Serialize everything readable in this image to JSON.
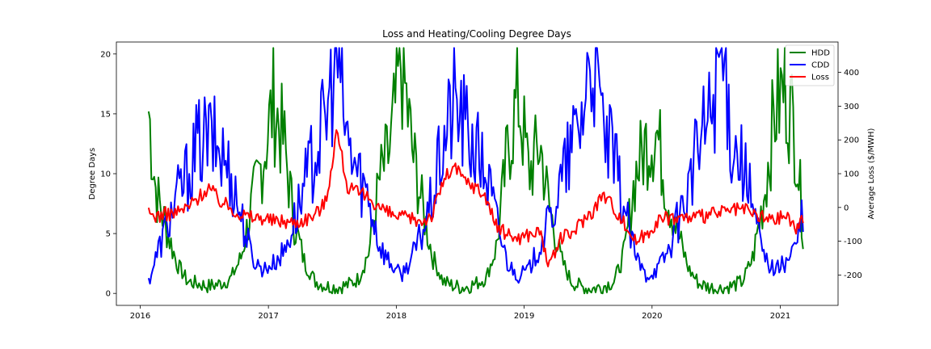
{
  "chart_data": {
    "type": "line",
    "title": "Loss and Heating/Cooling Degree Days",
    "xlabel": "",
    "ylabel": "Degree Days",
    "ylabel_right": "Average Loss ($/MWH)",
    "x_ticks": [
      "2016",
      "2017",
      "2018",
      "2019",
      "2020",
      "2021"
    ],
    "xlim": [
      "2015-10-25",
      "2021-06-15"
    ],
    "ylim": [
      -1,
      21
    ],
    "y_ticks": [
      0,
      5,
      10,
      15,
      20
    ],
    "ylim_right": [
      -290,
      490
    ],
    "y_ticks_right": [
      -200,
      -100,
      0,
      100,
      200,
      300,
      400
    ],
    "legend_position": "top-right",
    "grid": false,
    "series": [
      {
        "name": "HDD",
        "axis": "left",
        "color": "#008000",
        "x": [
          "2016-01-25",
          "2016-02-15",
          "2016-03-15",
          "2016-04-15",
          "2016-05-15",
          "2016-06-15",
          "2016-07-15",
          "2016-08-15",
          "2016-09-15",
          "2016-10-15",
          "2016-11-15",
          "2016-12-15",
          "2017-01-15",
          "2017-02-15",
          "2017-03-15",
          "2017-04-15",
          "2017-05-15",
          "2017-06-15",
          "2017-07-15",
          "2017-08-15",
          "2017-09-15",
          "2017-10-15",
          "2017-11-15",
          "2017-12-15",
          "2018-01-15",
          "2018-02-15",
          "2018-03-15",
          "2018-04-15",
          "2018-05-15",
          "2018-06-15",
          "2018-07-15",
          "2018-08-15",
          "2018-09-15",
          "2018-10-15",
          "2018-11-15",
          "2018-12-15",
          "2019-01-15",
          "2019-02-15",
          "2019-03-15",
          "2019-04-15",
          "2019-05-15",
          "2019-06-15",
          "2019-07-15",
          "2019-08-15",
          "2019-09-15",
          "2019-10-15",
          "2019-11-15",
          "2019-12-15",
          "2020-01-15",
          "2020-02-15",
          "2020-03-15",
          "2020-04-15",
          "2020-05-15",
          "2020-06-15",
          "2020-07-15",
          "2020-08-15",
          "2020-09-15",
          "2020-10-15",
          "2020-11-15",
          "2020-12-15",
          "2021-01-15",
          "2021-02-15",
          "2021-03-08"
        ],
        "values": [
          15.3,
          8.5,
          5.5,
          2.5,
          1.0,
          0.8,
          0.6,
          0.8,
          1.2,
          3.0,
          7.5,
          11.0,
          16.0,
          12.5,
          6.0,
          2.5,
          1.0,
          0.6,
          0.5,
          0.7,
          1.2,
          3.5,
          9.5,
          12.0,
          19.7,
          12.0,
          7.5,
          3.0,
          1.0,
          0.6,
          0.5,
          0.8,
          1.3,
          4.0,
          12.0,
          16.5,
          10.0,
          12.5,
          7.0,
          3.0,
          1.0,
          0.5,
          0.4,
          0.6,
          1.0,
          3.5,
          10.0,
          12.5,
          13.5,
          8.0,
          5.0,
          2.0,
          0.8,
          0.5,
          0.4,
          0.6,
          1.0,
          3.0,
          8.0,
          15.0,
          17.5,
          13.0,
          5.0
        ]
      },
      {
        "name": "CDD",
        "axis": "left",
        "color": "#0000ff",
        "x": [
          "2016-01-25",
          "2016-02-15",
          "2016-03-15",
          "2016-04-15",
          "2016-05-15",
          "2016-06-15",
          "2016-07-15",
          "2016-08-15",
          "2016-09-15",
          "2016-10-15",
          "2016-11-15",
          "2016-12-15",
          "2017-01-15",
          "2017-02-15",
          "2017-03-15",
          "2017-04-15",
          "2017-05-15",
          "2017-06-15",
          "2017-07-15",
          "2017-08-15",
          "2017-09-15",
          "2017-10-15",
          "2017-11-15",
          "2017-12-15",
          "2018-01-15",
          "2018-02-15",
          "2018-03-15",
          "2018-04-15",
          "2018-05-15",
          "2018-06-15",
          "2018-07-15",
          "2018-08-15",
          "2018-09-15",
          "2018-10-15",
          "2018-11-15",
          "2018-12-15",
          "2019-01-15",
          "2019-02-15",
          "2019-03-15",
          "2019-04-15",
          "2019-05-15",
          "2019-06-15",
          "2019-07-15",
          "2019-08-15",
          "2019-09-15",
          "2019-10-15",
          "2019-11-15",
          "2019-12-15",
          "2020-01-15",
          "2020-02-15",
          "2020-03-15",
          "2020-04-15",
          "2020-05-15",
          "2020-06-15",
          "2020-07-15",
          "2020-08-15",
          "2020-09-15",
          "2020-10-15",
          "2020-11-15",
          "2020-12-15",
          "2021-01-15",
          "2021-02-15",
          "2021-03-08"
        ],
        "values": [
          1.0,
          3.0,
          5.5,
          8.0,
          10.0,
          12.5,
          13.0,
          12.0,
          10.0,
          6.5,
          3.0,
          2.0,
          2.5,
          3.5,
          6.0,
          9.0,
          12.0,
          14.5,
          20.5,
          12.5,
          10.0,
          8.0,
          4.0,
          2.5,
          1.5,
          3.0,
          5.0,
          8.0,
          12.5,
          16.0,
          14.0,
          12.0,
          10.0,
          6.0,
          2.5,
          1.5,
          2.0,
          4.0,
          6.0,
          9.0,
          12.0,
          15.0,
          20.5,
          13.5,
          11.0,
          7.0,
          3.0,
          1.5,
          2.0,
          3.5,
          6.0,
          9.0,
          12.5,
          15.0,
          20.4,
          13.0,
          11.0,
          7.0,
          3.0,
          2.0,
          2.5,
          4.0,
          6.5
        ]
      },
      {
        "name": "Loss",
        "axis": "right",
        "color": "#ff0000",
        "x": [
          "2016-01-25",
          "2016-02-15",
          "2016-03-15",
          "2016-04-15",
          "2016-05-15",
          "2016-06-15",
          "2016-07-15",
          "2016-08-15",
          "2016-09-15",
          "2016-10-15",
          "2016-11-15",
          "2016-12-15",
          "2017-01-15",
          "2017-02-15",
          "2017-03-15",
          "2017-04-15",
          "2017-05-15",
          "2017-06-15",
          "2017-07-15",
          "2017-08-15",
          "2017-09-15",
          "2017-10-15",
          "2017-11-15",
          "2017-12-15",
          "2018-01-15",
          "2018-02-15",
          "2018-03-15",
          "2018-04-15",
          "2018-05-15",
          "2018-06-15",
          "2018-07-15",
          "2018-08-15",
          "2018-09-15",
          "2018-10-15",
          "2018-11-15",
          "2018-12-15",
          "2019-01-15",
          "2019-02-15",
          "2019-03-15",
          "2019-04-15",
          "2019-05-15",
          "2019-06-15",
          "2019-07-15",
          "2019-08-15",
          "2019-09-15",
          "2019-10-15",
          "2019-11-15",
          "2019-12-15",
          "2020-01-15",
          "2020-02-15",
          "2020-03-15",
          "2020-04-15",
          "2020-05-15",
          "2020-06-15",
          "2020-07-15",
          "2020-08-15",
          "2020-09-15",
          "2020-10-15",
          "2020-11-15",
          "2020-12-15",
          "2021-01-15",
          "2021-02-15",
          "2021-03-08"
        ],
        "values": [
          -20,
          -25,
          -20,
          -15,
          0,
          30,
          60,
          20,
          0,
          -20,
          -30,
          -30,
          -40,
          -40,
          -45,
          -35,
          -20,
          20,
          230,
          60,
          40,
          30,
          0,
          -20,
          -30,
          -35,
          -40,
          -20,
          80,
          120,
          80,
          60,
          30,
          -60,
          -80,
          -90,
          -80,
          -70,
          -180,
          -90,
          -80,
          -40,
          -10,
          40,
          0,
          -50,
          -100,
          -80,
          -40,
          -30,
          -30,
          -30,
          -30,
          -20,
          -15,
          -10,
          -5,
          -20,
          -30,
          -40,
          -20,
          -60,
          -40
        ]
      }
    ]
  }
}
